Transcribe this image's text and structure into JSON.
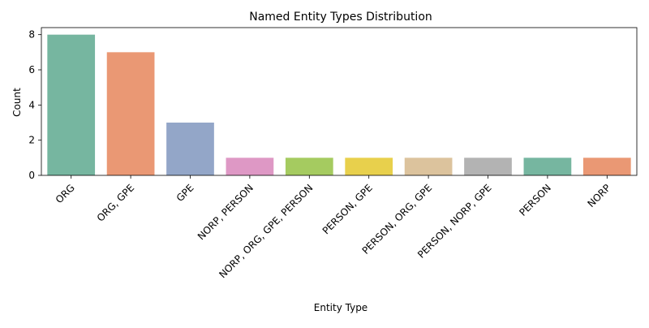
{
  "chart_data": {
    "type": "bar",
    "title": "Named Entity Types Distribution",
    "xlabel": "Entity Type",
    "ylabel": "Count",
    "ylim": [
      0,
      8.4
    ],
    "yticks": [
      0,
      2,
      4,
      6,
      8
    ],
    "grid": false,
    "categories": [
      "ORG",
      "ORG, GPE",
      "GPE",
      "NORP, PERSON",
      "NORP, ORG, GPE, PERSON",
      "PERSON, GPE",
      "PERSON, ORG, GPE",
      "PERSON, NORP, GPE",
      "PERSON",
      "NORP"
    ],
    "values": [
      8,
      7,
      3,
      1,
      1,
      1,
      1,
      1,
      1,
      1
    ],
    "colors": [
      "#76b6a0",
      "#ea9874",
      "#93a6c8",
      "#de98c5",
      "#a5cb60",
      "#e8d04c",
      "#dcc39d",
      "#b3b3b3",
      "#76b6a0",
      "#ea9874"
    ]
  }
}
